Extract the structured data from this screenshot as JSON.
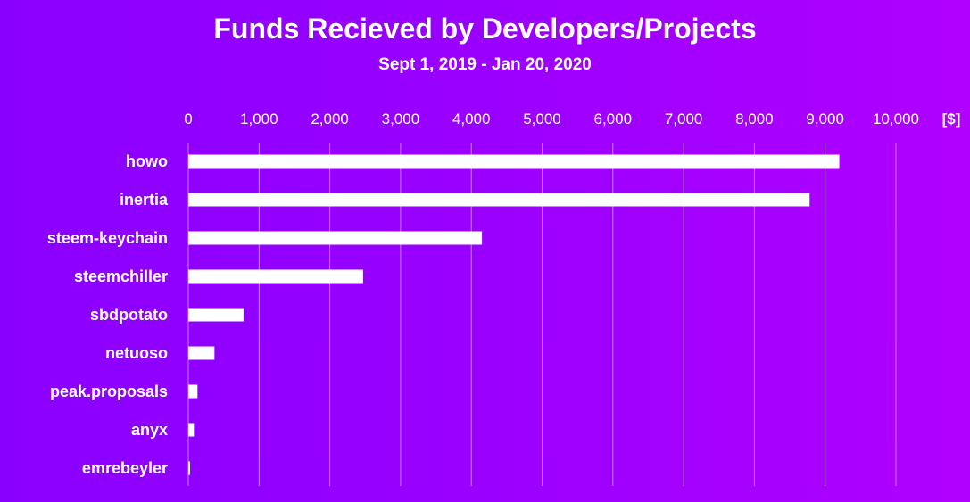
{
  "chart_data": {
    "type": "bar",
    "orientation": "horizontal",
    "title": "Funds Recieved by Developers/Projects",
    "subtitle": "Sept 1, 2019 - Jan 20, 2020",
    "unit_label": "[$]",
    "xlim": [
      0,
      10000
    ],
    "x_ticks": [
      0,
      1000,
      2000,
      3000,
      4000,
      5000,
      6000,
      7000,
      8000,
      9000,
      10000
    ],
    "x_tick_labels": [
      "0",
      "1,000",
      "2,000",
      "3,000",
      "4,000",
      "5,000",
      "6,000",
      "7,000",
      "8,000",
      "9,000",
      "10,000"
    ],
    "categories": [
      "howo",
      "inertia",
      "steem-keychain",
      "steemchiller",
      "sbdpotato",
      "netuoso",
      "peak.proposals",
      "anyx",
      "emrebeyler"
    ],
    "values": [
      9200,
      8780,
      4150,
      2470,
      780,
      370,
      130,
      80,
      20
    ],
    "grid": true,
    "legend": "none",
    "colors": {
      "bar": "#ffffff",
      "background": "#9600ff",
      "gridline": "#c77bff"
    }
  }
}
